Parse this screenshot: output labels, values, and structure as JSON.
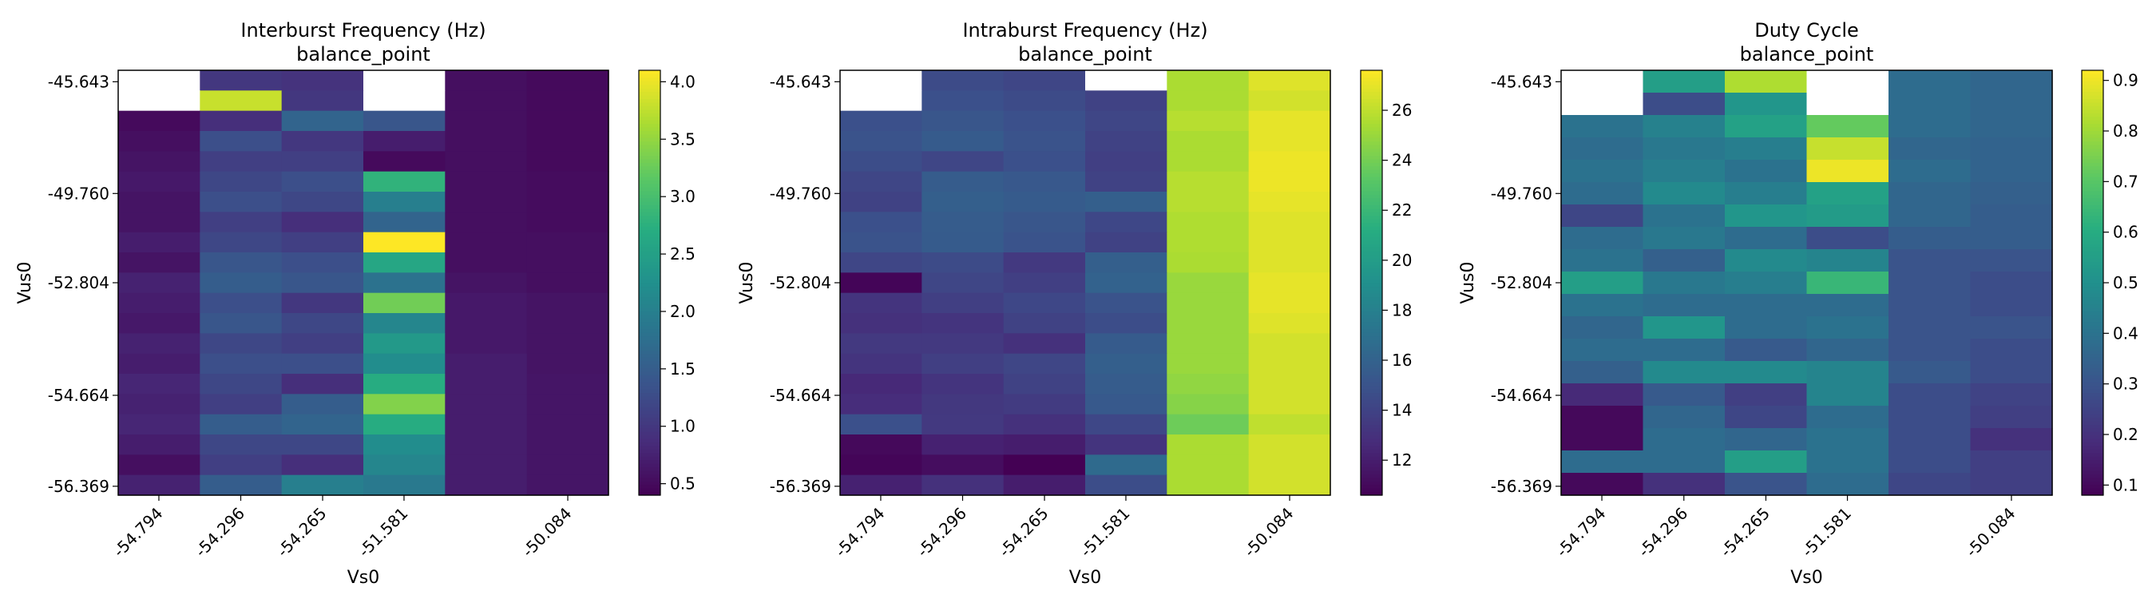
{
  "chart_data": [
    {
      "type": "heatmap",
      "title": "Interburst Frequency (Hz)",
      "subtitle": "balance_point",
      "xlabel": "Vs0",
      "ylabel": "Vus0",
      "x_ticks": [
        "-54.794",
        "-54.296",
        "-54.265",
        "-51.581",
        "-50.084"
      ],
      "y_ticks": [
        "-45.643",
        "-49.760",
        "-52.804",
        "-54.664",
        "-56.369"
      ],
      "colorbar_ticks": [
        "0.5",
        "1.0",
        "1.5",
        "2.0",
        "2.5",
        "3.0",
        "3.5",
        "4.0"
      ],
      "colorbar_range": [
        0.4,
        4.1
      ],
      "colormap": "viridis",
      "values": [
        [
          null,
          1.0,
          0.95,
          null,
          0.55,
          0.5
        ],
        [
          null,
          3.8,
          1.0,
          null,
          0.55,
          0.5
        ],
        [
          0.5,
          0.9,
          1.6,
          1.4,
          0.55,
          0.5
        ],
        [
          0.55,
          1.3,
          1.0,
          0.7,
          0.55,
          0.5
        ],
        [
          0.6,
          1.1,
          1.1,
          0.5,
          0.55,
          0.5
        ],
        [
          0.65,
          1.2,
          1.3,
          2.8,
          0.55,
          0.52
        ],
        [
          0.6,
          1.3,
          1.2,
          2.0,
          0.55,
          0.52
        ],
        [
          0.6,
          1.1,
          0.9,
          1.6,
          0.55,
          0.52
        ],
        [
          0.7,
          1.2,
          1.1,
          4.1,
          0.55,
          0.55
        ],
        [
          0.6,
          1.4,
          1.3,
          2.6,
          0.55,
          0.55
        ],
        [
          0.75,
          1.5,
          1.4,
          1.8,
          0.6,
          0.55
        ],
        [
          0.7,
          1.3,
          1.0,
          3.3,
          0.65,
          0.6
        ],
        [
          0.65,
          1.4,
          1.2,
          2.1,
          0.65,
          0.6
        ],
        [
          0.75,
          1.2,
          1.1,
          2.4,
          0.65,
          0.6
        ],
        [
          0.7,
          1.3,
          1.3,
          2.2,
          0.7,
          0.6
        ],
        [
          0.8,
          1.2,
          0.9,
          2.7,
          0.7,
          0.62
        ],
        [
          0.75,
          1.1,
          1.5,
          3.4,
          0.7,
          0.62
        ],
        [
          0.8,
          1.5,
          1.6,
          2.7,
          0.7,
          0.62
        ],
        [
          0.7,
          1.2,
          1.2,
          2.2,
          0.7,
          0.62
        ],
        [
          0.55,
          1.1,
          0.9,
          2.1,
          0.7,
          0.62
        ],
        [
          0.75,
          1.5,
          2.0,
          1.9,
          0.7,
          0.62
        ]
      ]
    },
    {
      "type": "heatmap",
      "title": "Intraburst Frequency (Hz)",
      "subtitle": "balance_point",
      "xlabel": "Vs0",
      "ylabel": "Vus0",
      "x_ticks": [
        "-54.794",
        "-54.296",
        "-54.265",
        "-51.581",
        "-50.084"
      ],
      "y_ticks": [
        "-45.643",
        "-49.760",
        "-52.804",
        "-54.664",
        "-56.369"
      ],
      "colorbar_ticks": [
        "12",
        "14",
        "16",
        "18",
        "20",
        "22",
        "24",
        "26"
      ],
      "colorbar_range": [
        10.6,
        27.6
      ],
      "colormap": "viridis",
      "values": [
        [
          null,
          14.5,
          14.2,
          null,
          25.5,
          26.8
        ],
        [
          null,
          14.8,
          14.5,
          14.0,
          25.5,
          26.5
        ],
        [
          14.8,
          15.2,
          14.8,
          14.2,
          25.8,
          27.0
        ],
        [
          15.0,
          15.5,
          15.0,
          14.0,
          25.5,
          27.0
        ],
        [
          14.6,
          14.2,
          14.8,
          13.8,
          25.5,
          27.2
        ],
        [
          14.2,
          15.6,
          15.3,
          14.0,
          25.8,
          27.2
        ],
        [
          14.0,
          15.8,
          15.5,
          15.8,
          25.8,
          27.0
        ],
        [
          14.8,
          15.6,
          15.2,
          14.3,
          25.6,
          26.8
        ],
        [
          15.0,
          15.5,
          15.0,
          14.0,
          25.6,
          26.8
        ],
        [
          14.2,
          14.5,
          13.5,
          15.8,
          25.5,
          26.8
        ],
        [
          10.8,
          14.2,
          13.8,
          16.0,
          25.0,
          27.0
        ],
        [
          13.2,
          13.8,
          14.3,
          15.0,
          25.0,
          27.0
        ],
        [
          13.0,
          13.2,
          14.0,
          14.6,
          25.0,
          26.8
        ],
        [
          13.5,
          13.5,
          13.0,
          15.5,
          25.0,
          26.5
        ],
        [
          13.2,
          13.8,
          14.2,
          15.8,
          25.0,
          26.5
        ],
        [
          12.6,
          13.2,
          14.0,
          15.6,
          24.8,
          26.5
        ],
        [
          12.8,
          13.4,
          13.6,
          15.4,
          24.5,
          26.5
        ],
        [
          14.8,
          13.5,
          13.0,
          14.3,
          23.8,
          26.0
        ],
        [
          11.0,
          12.2,
          12.0,
          13.2,
          25.5,
          26.5
        ],
        [
          10.8,
          11.2,
          10.6,
          16.5,
          25.5,
          26.5
        ],
        [
          12.2,
          13.0,
          12.0,
          14.6,
          25.5,
          26.5
        ]
      ]
    },
    {
      "type": "heatmap",
      "title": "Duty Cycle",
      "subtitle": "balance_point",
      "xlabel": "Vs0",
      "ylabel": "Vus0",
      "x_ticks": [
        "-54.794",
        "-54.296",
        "-54.265",
        "-51.581",
        "-50.084"
      ],
      "y_ticks": [
        "-45.643",
        "-49.760",
        "-52.804",
        "-54.664",
        "-56.369"
      ],
      "colorbar_ticks": [
        "0.1",
        "0.2",
        "0.3",
        "0.4",
        "0.5",
        "0.6",
        "0.7",
        "0.8",
        "0.9"
      ],
      "colorbar_range": [
        0.08,
        0.92
      ],
      "colormap": "viridis",
      "values": [
        [
          null,
          0.55,
          0.82,
          null,
          0.38,
          0.36
        ],
        [
          null,
          0.28,
          0.52,
          null,
          0.38,
          0.36
        ],
        [
          0.4,
          0.45,
          0.56,
          0.72,
          0.38,
          0.36
        ],
        [
          0.38,
          0.42,
          0.44,
          0.85,
          0.36,
          0.35
        ],
        [
          0.4,
          0.44,
          0.4,
          0.9,
          0.38,
          0.35
        ],
        [
          0.38,
          0.48,
          0.44,
          0.56,
          0.36,
          0.34
        ],
        [
          0.26,
          0.4,
          0.52,
          0.54,
          0.36,
          0.33
        ],
        [
          0.38,
          0.42,
          0.38,
          0.28,
          0.33,
          0.33
        ],
        [
          0.4,
          0.34,
          0.48,
          0.46,
          0.3,
          0.3
        ],
        [
          0.55,
          0.42,
          0.44,
          0.64,
          0.3,
          0.28
        ],
        [
          0.4,
          0.38,
          0.38,
          0.38,
          0.3,
          0.28
        ],
        [
          0.36,
          0.52,
          0.38,
          0.4,
          0.3,
          0.3
        ],
        [
          0.38,
          0.38,
          0.32,
          0.36,
          0.3,
          0.28
        ],
        [
          0.34,
          0.48,
          0.48,
          0.46,
          0.32,
          0.28
        ],
        [
          0.18,
          0.32,
          0.24,
          0.46,
          0.28,
          0.25
        ],
        [
          0.1,
          0.36,
          0.26,
          0.38,
          0.28,
          0.24
        ],
        [
          0.1,
          0.38,
          0.36,
          0.4,
          0.28,
          0.2
        ],
        [
          0.38,
          0.38,
          0.55,
          0.4,
          0.28,
          0.24
        ],
        [
          0.1,
          0.2,
          0.3,
          0.38,
          0.26,
          0.24
        ]
      ]
    }
  ]
}
